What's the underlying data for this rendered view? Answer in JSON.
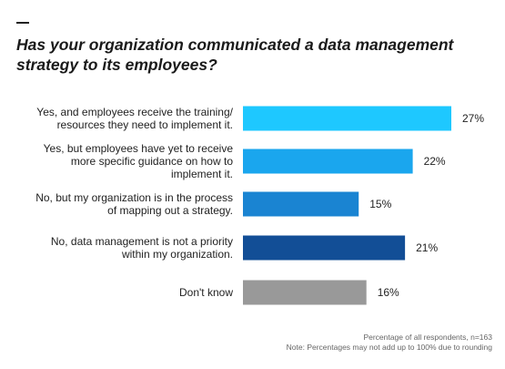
{
  "header": {
    "title": "Has your organization communicated a data management strategy to its employees?"
  },
  "footnote": {
    "line1": "Percentage of all respondents, n=163",
    "line2": "Note: Percentages may not add up to 100% due to rounding"
  },
  "chart_data": {
    "type": "bar",
    "orientation": "horizontal",
    "categories": [
      [
        "Yes, and employees receive the training/",
        "resources they need to implement it."
      ],
      [
        "Yes, but employees have yet to receive",
        "more specific guidance on how to",
        "implement it."
      ],
      [
        "No, but my organization is in the process",
        "of mapping out a strategy."
      ],
      [
        "No, data management is not a priority",
        "within my organization."
      ],
      [
        "Don't know"
      ]
    ],
    "values": [
      27,
      22,
      15,
      21,
      16
    ],
    "value_labels": [
      "27%",
      "22%",
      "15%",
      "21%",
      "16%"
    ],
    "colors": [
      "#1ec8ff",
      "#1aa6ee",
      "#1a84d2",
      "#124e96",
      "#999999"
    ],
    "xlim": [
      0,
      27
    ],
    "grid": false,
    "legend": "none"
  }
}
